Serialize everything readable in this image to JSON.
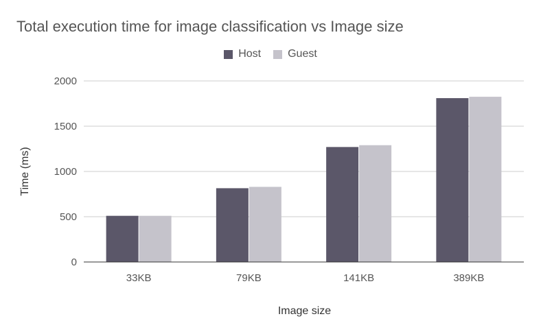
{
  "chart_data": {
    "type": "bar",
    "title": "Total execution time for image classification vs Image size",
    "xlabel": "Image size",
    "ylabel": "Time (ms)",
    "categories": [
      "33KB",
      "79KB",
      "141KB",
      "389KB"
    ],
    "series": [
      {
        "name": "Host",
        "color": "#5b5769",
        "values": [
          510,
          815,
          1270,
          1810
        ]
      },
      {
        "name": "Guest",
        "color": "#c5c3cb",
        "values": [
          510,
          830,
          1290,
          1825
        ]
      }
    ],
    "ylim": [
      0,
      2000
    ],
    "yticks": [
      0,
      500,
      1000,
      1500,
      2000
    ],
    "grid": true,
    "legend_position": "top-center"
  }
}
